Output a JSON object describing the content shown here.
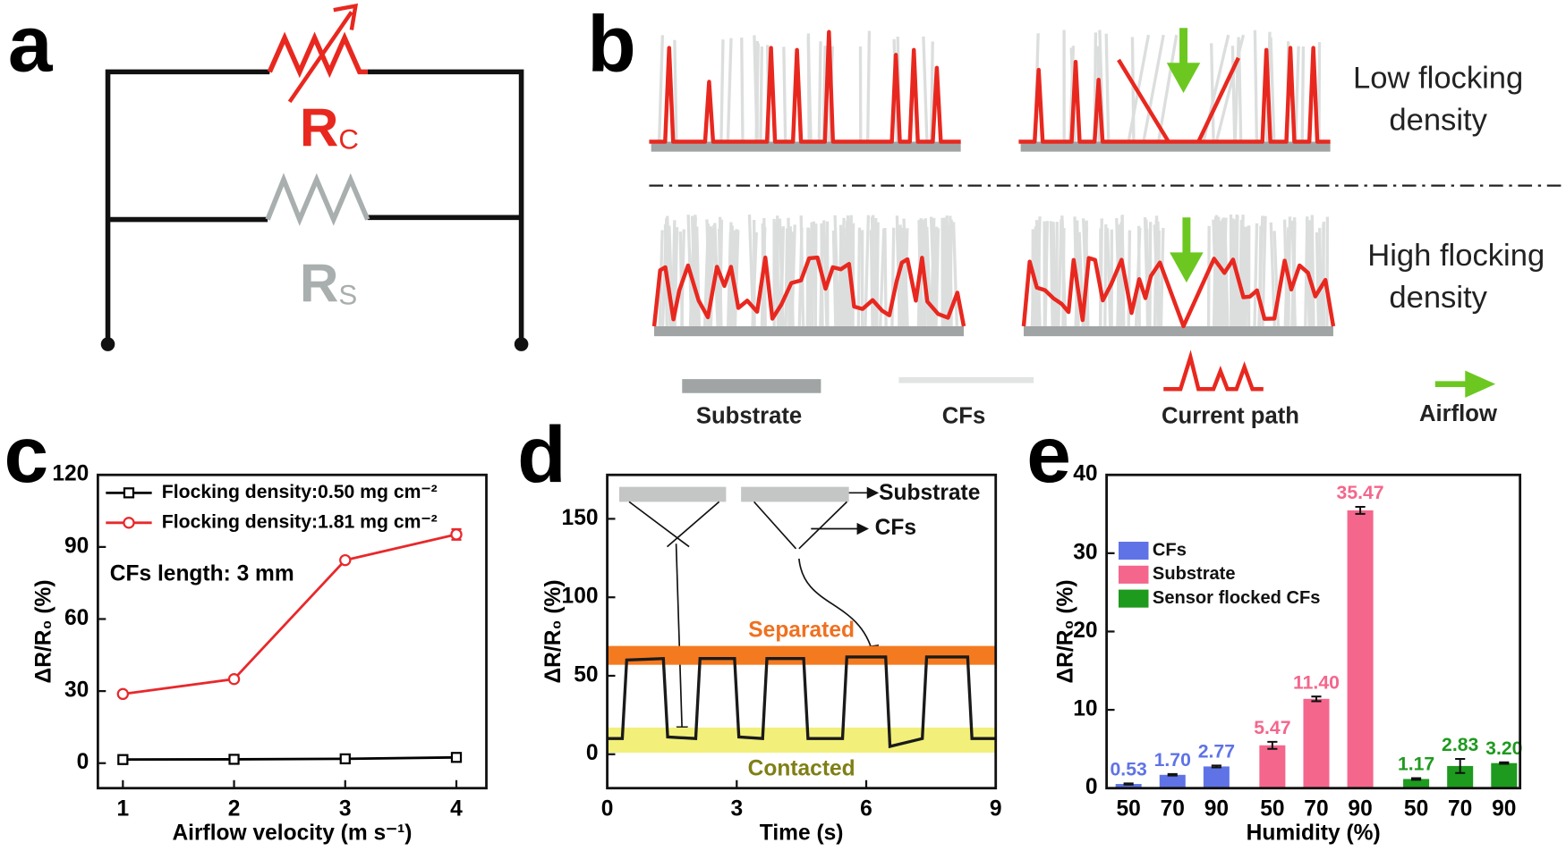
{
  "panel_labels": [
    "a",
    "b",
    "c",
    "d",
    "e"
  ],
  "circuit": {
    "resistors": [
      {
        "symbol": "R",
        "subscript": "C"
      },
      {
        "symbol": "R",
        "subscript": "S"
      }
    ]
  },
  "flocking": {
    "rows": [
      [
        "Low flocking",
        "density"
      ],
      [
        "High flocking",
        "density"
      ]
    ],
    "legend": [
      "Substrate",
      "CFs",
      "Current path",
      "Airflow"
    ]
  },
  "chart_data": [
    {
      "type": "line",
      "xlabel": "Airflow velocity (m s⁻¹)",
      "ylabel": "ΔR/R₀ (%)",
      "annotation": "CFs length: 3 mm",
      "x": [
        1,
        2,
        3,
        4
      ],
      "xlim": [
        0.775,
        4.27
      ],
      "xticks": [
        1,
        2,
        3,
        4
      ],
      "ylim": [
        -10.4,
        120
      ],
      "yticks": [
        0,
        30,
        60,
        90,
        120
      ],
      "legend": "upper left",
      "series": [
        {
          "name": "Flocking density:0.50 mg cm⁻²",
          "color": "#000000",
          "marker": "square",
          "values": [
            1.5,
            1.6,
            1.8,
            2.4
          ]
        },
        {
          "name": "Flocking density:1.81 mg cm⁻²",
          "color": "#e8282b",
          "marker": "circle",
          "values": [
            28.8,
            35,
            84.5,
            95.2
          ],
          "errors": [
            0.6,
            0.8,
            0.8,
            2.2
          ]
        }
      ]
    },
    {
      "type": "line",
      "xlabel": "Time (s)",
      "ylabel": "ΔR/R₀ (%)",
      "xlim": [
        0,
        9
      ],
      "xticks": [
        0,
        3,
        6,
        9
      ],
      "ylim": [
        -21.6,
        178
      ],
      "yticks": [
        0,
        50,
        100,
        150
      ],
      "inset_labels": [
        "Substrate",
        "CFs"
      ],
      "bands": [
        {
          "name": "Separated",
          "range": [
            57,
            69
          ],
          "color": "#f47a20",
          "label_color": "#f07020"
        },
        {
          "name": "Contacted",
          "range": [
            1,
            17
          ],
          "color": "#f2f07a",
          "label_color": "#7f7f16"
        }
      ],
      "series": [
        {
          "color": "#1a1a1a",
          "x": [
            0,
            0.35,
            0.45,
            1.3,
            1.4,
            2.05,
            2.15,
            2.95,
            3.05,
            3.6,
            3.7,
            4.55,
            4.65,
            5.45,
            5.55,
            6.45,
            6.55,
            7.3,
            7.4,
            8.35,
            8.45,
            9
          ],
          "values": [
            10,
            10,
            60,
            61,
            11,
            10,
            61,
            61,
            11,
            10,
            61,
            61,
            10,
            10,
            62,
            62,
            5,
            10,
            62,
            62,
            10,
            10
          ]
        }
      ]
    },
    {
      "type": "bar",
      "xlabel": "Humidity (%)",
      "ylabel": "ΔR/R₀ (%)",
      "categories": [
        "50",
        "70",
        "90",
        "50",
        "70",
        "90",
        "50",
        "70",
        "90"
      ],
      "ylim": [
        0,
        40
      ],
      "yticks": [
        0,
        10,
        20,
        30,
        40
      ],
      "series": [
        {
          "name": "CFs",
          "color": "#5f73e6",
          "values": [
            0.53,
            1.7,
            2.77,
            null,
            null,
            null,
            null,
            null,
            null
          ],
          "value_labels": [
            "0.53",
            "1.70",
            "2.77",
            null,
            null,
            null,
            null,
            null,
            null
          ],
          "errors": [
            0.08,
            0.1,
            0.12,
            null,
            null,
            null,
            null,
            null,
            null
          ]
        },
        {
          "name": "Substrate",
          "color": "#f4668c",
          "values": [
            null,
            null,
            null,
            5.47,
            11.4,
            35.47,
            null,
            null,
            null
          ],
          "value_labels": [
            null,
            null,
            null,
            "5.47",
            "11.40",
            "35.47",
            null,
            null,
            null
          ],
          "errors": [
            null,
            null,
            null,
            0.45,
            0.3,
            0.45,
            null,
            null,
            null
          ]
        },
        {
          "name": "Sensor flocked CFs",
          "color": "#1e9a1e",
          "values": [
            null,
            null,
            null,
            null,
            null,
            null,
            1.17,
            2.83,
            3.2
          ],
          "value_labels": [
            null,
            null,
            null,
            null,
            null,
            null,
            "1.17",
            "2.83",
            "3.20"
          ],
          "errors": [
            null,
            null,
            null,
            null,
            null,
            null,
            0.1,
            0.9,
            0.1
          ]
        }
      ]
    }
  ]
}
